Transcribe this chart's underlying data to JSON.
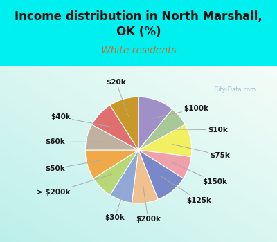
{
  "title": "Income distribution in North Marshall,\nOK (%)",
  "subtitle": "White residents",
  "title_color": "#111111",
  "subtitle_color": "#c07030",
  "background_cyan": "#00f0f0",
  "background_chart_top": "#f0f8f8",
  "background_chart_bot": "#c8e8d8",
  "watermark": "  City-Data.com",
  "labels": [
    "$100k",
    "$10k",
    "$75k",
    "$150k",
    "$125k",
    "$200k",
    "$30k",
    "> $200k",
    "$50k",
    "$60k",
    "$40k",
    "$20k"
  ],
  "values": [
    11,
    6,
    10,
    7,
    10,
    8,
    7,
    7,
    9,
    8,
    8,
    9
  ],
  "colors": [
    "#a090c8",
    "#a8c898",
    "#f0f060",
    "#f0a0a8",
    "#7888c8",
    "#f0c090",
    "#90a8d8",
    "#b8d878",
    "#f0a848",
    "#c0b0a0",
    "#e07070",
    "#c89828"
  ],
  "title_fontsize": 12,
  "subtitle_fontsize": 10,
  "label_fontsize": 7.5
}
